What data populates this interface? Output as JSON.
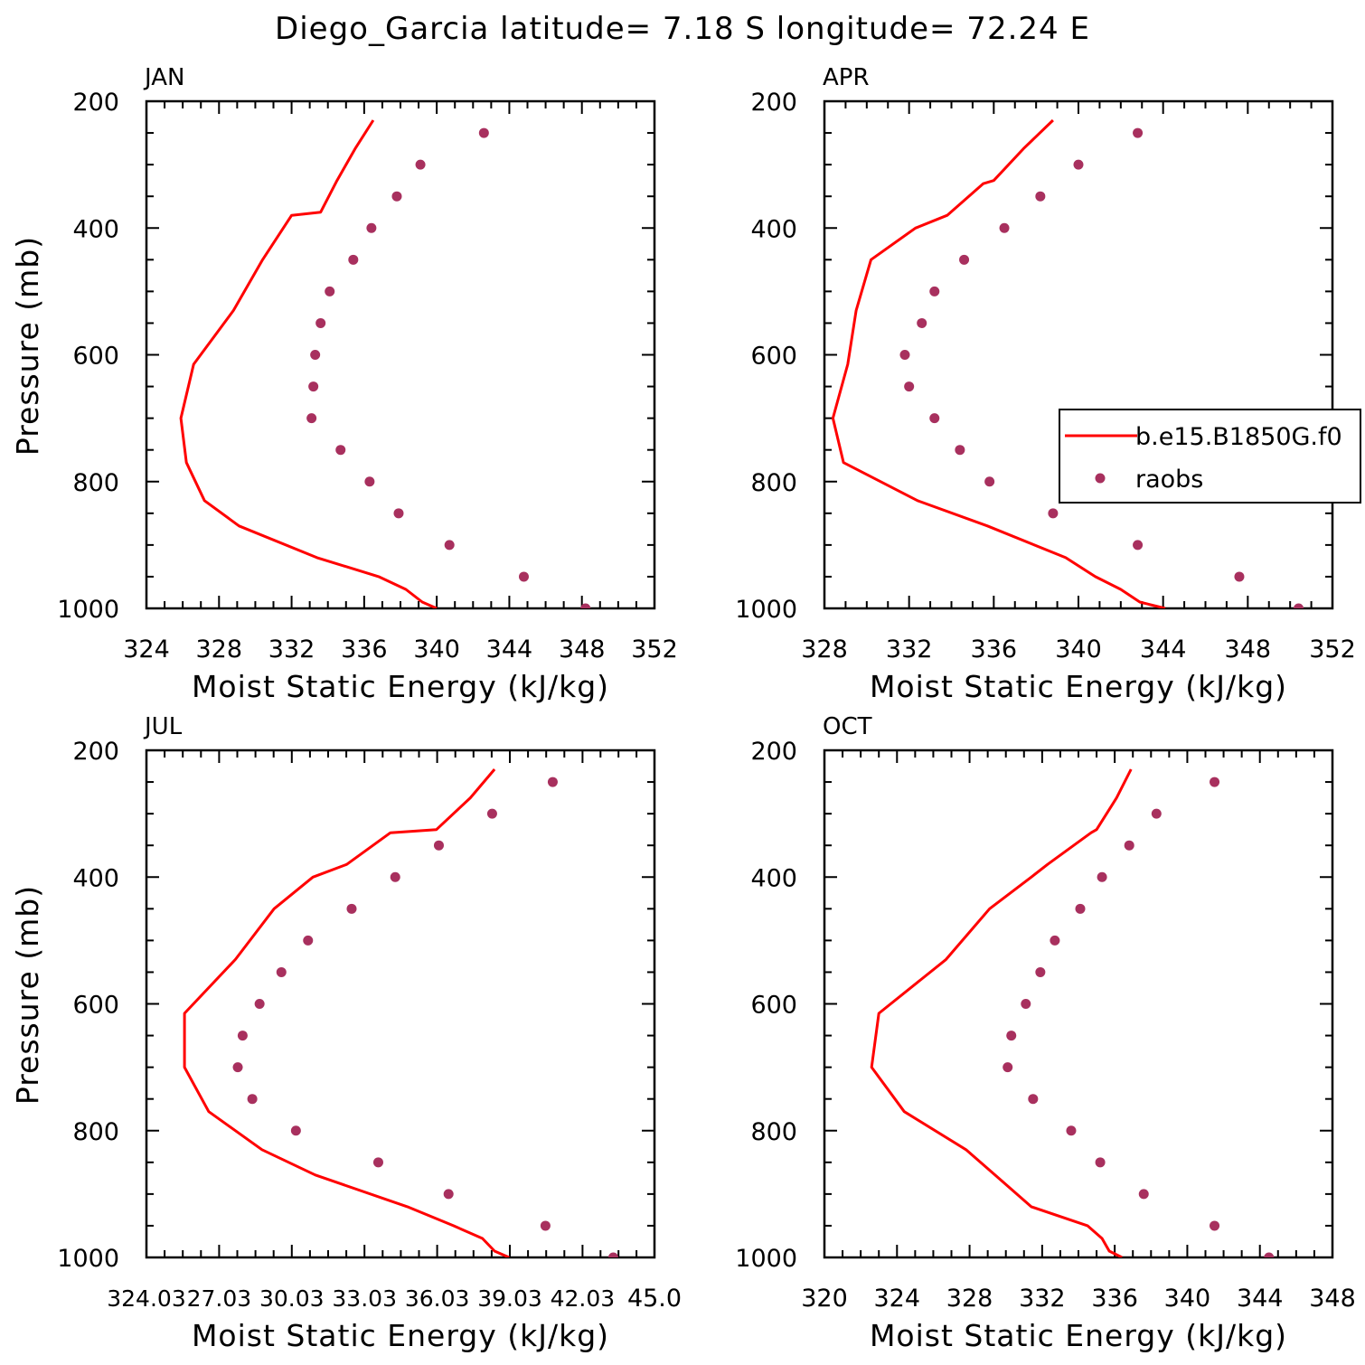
{
  "figure": {
    "title": "Diego_Garcia  latitude= 7.18 S longitude= 72.24 E"
  },
  "colors": {
    "model": "#ff0000",
    "obs": "#a8305e",
    "axis": "#000000"
  },
  "chart_data": [
    {
      "type": "line",
      "panel": "JAN",
      "title": "JAN",
      "xlabel": "Moist Static Energy (kJ/kg)",
      "ylabel": "Pressure (mb)",
      "xlim": [
        324,
        352
      ],
      "ylim": [
        1000,
        200
      ],
      "xticks": [
        324,
        328,
        332,
        336,
        340,
        344,
        348,
        352
      ],
      "xtick_labels": [
        "324",
        "328",
        "332",
        "336",
        "340",
        "344",
        "348",
        "352"
      ],
      "yticks": [
        200,
        400,
        600,
        800,
        1000
      ],
      "ytick_labels": [
        "200",
        "400",
        "600",
        "800",
        "1000"
      ],
      "legend": null,
      "series": [
        {
          "name": "b.e15.B1850G.f0",
          "kind": "line",
          "x": [
            336.5,
            335.5,
            334.5,
            333.6,
            332.0,
            330.4,
            328.8,
            326.6,
            325.9,
            326.2,
            327.2,
            329.1,
            333.4,
            336.8,
            338.3,
            339.2,
            340.0
          ],
          "y": [
            230,
            275,
            325,
            375,
            380,
            450,
            530,
            615,
            700,
            770,
            830,
            870,
            920,
            950,
            970,
            990,
            1000
          ]
        },
        {
          "name": "raobs",
          "kind": "scatter",
          "x": [
            342.6,
            339.1,
            337.8,
            336.4,
            335.4,
            334.1,
            333.6,
            333.3,
            333.2,
            333.1,
            334.7,
            336.3,
            337.9,
            340.7,
            344.8,
            348.2
          ],
          "y": [
            250,
            300,
            350,
            400,
            450,
            500,
            550,
            600,
            650,
            700,
            750,
            800,
            850,
            900,
            950,
            1000
          ]
        }
      ]
    },
    {
      "type": "line",
      "panel": "APR",
      "title": "APR",
      "xlabel": "Moist Static Energy (kJ/kg)",
      "ylabel": "",
      "xlim": [
        328,
        352
      ],
      "ylim": [
        1000,
        200
      ],
      "xticks": [
        328,
        332,
        336,
        340,
        344,
        348,
        352
      ],
      "xtick_labels": [
        "328",
        "332",
        "336",
        "340",
        "344",
        "348",
        "352"
      ],
      "yticks": [
        200,
        400,
        600,
        800,
        1000
      ],
      "ytick_labels": [
        "200",
        "400",
        "600",
        "800",
        "1000"
      ],
      "legend": {
        "location": "right",
        "entries": [
          "b.e15.B1850G.f0",
          "raobs"
        ]
      },
      "series": [
        {
          "name": "b.e15.B1850G.f0",
          "kind": "line",
          "x": [
            338.8,
            337.4,
            336.0,
            335.5,
            333.8,
            332.3,
            330.2,
            329.5,
            329.1,
            328.4,
            328.9,
            332.4,
            335.7,
            339.4,
            340.8,
            342.0,
            342.9,
            344.1
          ],
          "y": [
            230,
            275,
            325,
            330,
            380,
            400,
            450,
            530,
            615,
            700,
            770,
            830,
            870,
            920,
            950,
            970,
            990,
            1000
          ]
        },
        {
          "name": "raobs",
          "kind": "scatter",
          "x": [
            342.8,
            340.0,
            338.2,
            336.5,
            334.6,
            333.2,
            332.6,
            331.8,
            332.0,
            333.2,
            334.4,
            335.8,
            338.8,
            342.8,
            347.6,
            350.4
          ],
          "y": [
            250,
            300,
            350,
            400,
            450,
            500,
            550,
            600,
            650,
            700,
            750,
            800,
            850,
            900,
            950,
            1000
          ]
        }
      ]
    },
    {
      "type": "line",
      "panel": "JUL",
      "title": "JUL",
      "xlabel": "Moist Static Energy (kJ/kg)",
      "ylabel": "Pressure (mb)",
      "xlim": [
        324.03,
        345.0
      ],
      "ylim": [
        1000,
        200
      ],
      "xticks": [
        324.03,
        327.03,
        330.03,
        333.03,
        336.03,
        339.03,
        342.03,
        345.0
      ],
      "xtick_labels": [
        "324.03",
        "27.03",
        "30.03",
        "33.03",
        "36.03",
        "39.03",
        "42.03",
        "45.0"
      ],
      "yticks": [
        200,
        400,
        600,
        800,
        1000
      ],
      "ytick_labels": [
        "200",
        "400",
        "600",
        "800",
        "1000"
      ],
      "legend": null,
      "series": [
        {
          "name": "b.e15.B1850G.f0",
          "kind": "line",
          "x": [
            338.4,
            337.4,
            336.0,
            334.1,
            332.3,
            330.9,
            329.3,
            327.7,
            325.6,
            325.6,
            326.6,
            328.8,
            331.0,
            334.8,
            336.7,
            337.9,
            338.4,
            339.0
          ],
          "y": [
            230,
            275,
            325,
            330,
            380,
            400,
            450,
            530,
            615,
            700,
            770,
            830,
            870,
            920,
            950,
            970,
            990,
            1000
          ]
        },
        {
          "name": "raobs",
          "kind": "scatter",
          "x": [
            340.8,
            338.3,
            336.1,
            334.3,
            332.5,
            330.7,
            329.6,
            328.7,
            328.0,
            327.8,
            328.4,
            330.2,
            333.6,
            336.5,
            340.5,
            343.3
          ],
          "y": [
            250,
            300,
            350,
            400,
            450,
            500,
            550,
            600,
            650,
            700,
            750,
            800,
            850,
            900,
            950,
            1000
          ]
        }
      ]
    },
    {
      "type": "line",
      "panel": "OCT",
      "title": "OCT",
      "xlabel": "Moist Static Energy (kJ/kg)",
      "ylabel": "",
      "xlim": [
        320,
        348
      ],
      "ylim": [
        1000,
        200
      ],
      "xticks": [
        320,
        324,
        328,
        332,
        336,
        340,
        344,
        348
      ],
      "xtick_labels": [
        "320",
        "324",
        "328",
        "332",
        "336",
        "340",
        "344",
        "348"
      ],
      "yticks": [
        200,
        400,
        600,
        800,
        1000
      ],
      "ytick_labels": [
        "200",
        "400",
        "600",
        "800",
        "1000"
      ],
      "legend": null,
      "series": [
        {
          "name": "b.e15.B1850G.f0",
          "kind": "line",
          "x": [
            336.9,
            336.1,
            335.0,
            334.7,
            332.3,
            331.4,
            329.1,
            326.7,
            323.0,
            322.6,
            324.4,
            327.8,
            329.4,
            331.4,
            334.5,
            335.3,
            335.7,
            336.4
          ],
          "y": [
            230,
            275,
            325,
            330,
            380,
            400,
            450,
            530,
            615,
            700,
            770,
            830,
            870,
            920,
            950,
            970,
            990,
            1000
          ]
        },
        {
          "name": "raobs",
          "kind": "scatter",
          "x": [
            341.5,
            338.3,
            336.8,
            335.3,
            334.1,
            332.7,
            331.9,
            331.1,
            330.3,
            330.1,
            331.5,
            333.6,
            335.2,
            337.6,
            341.5,
            344.5
          ],
          "y": [
            250,
            300,
            350,
            400,
            450,
            500,
            550,
            600,
            650,
            700,
            750,
            800,
            850,
            900,
            950,
            1000
          ]
        }
      ]
    }
  ]
}
